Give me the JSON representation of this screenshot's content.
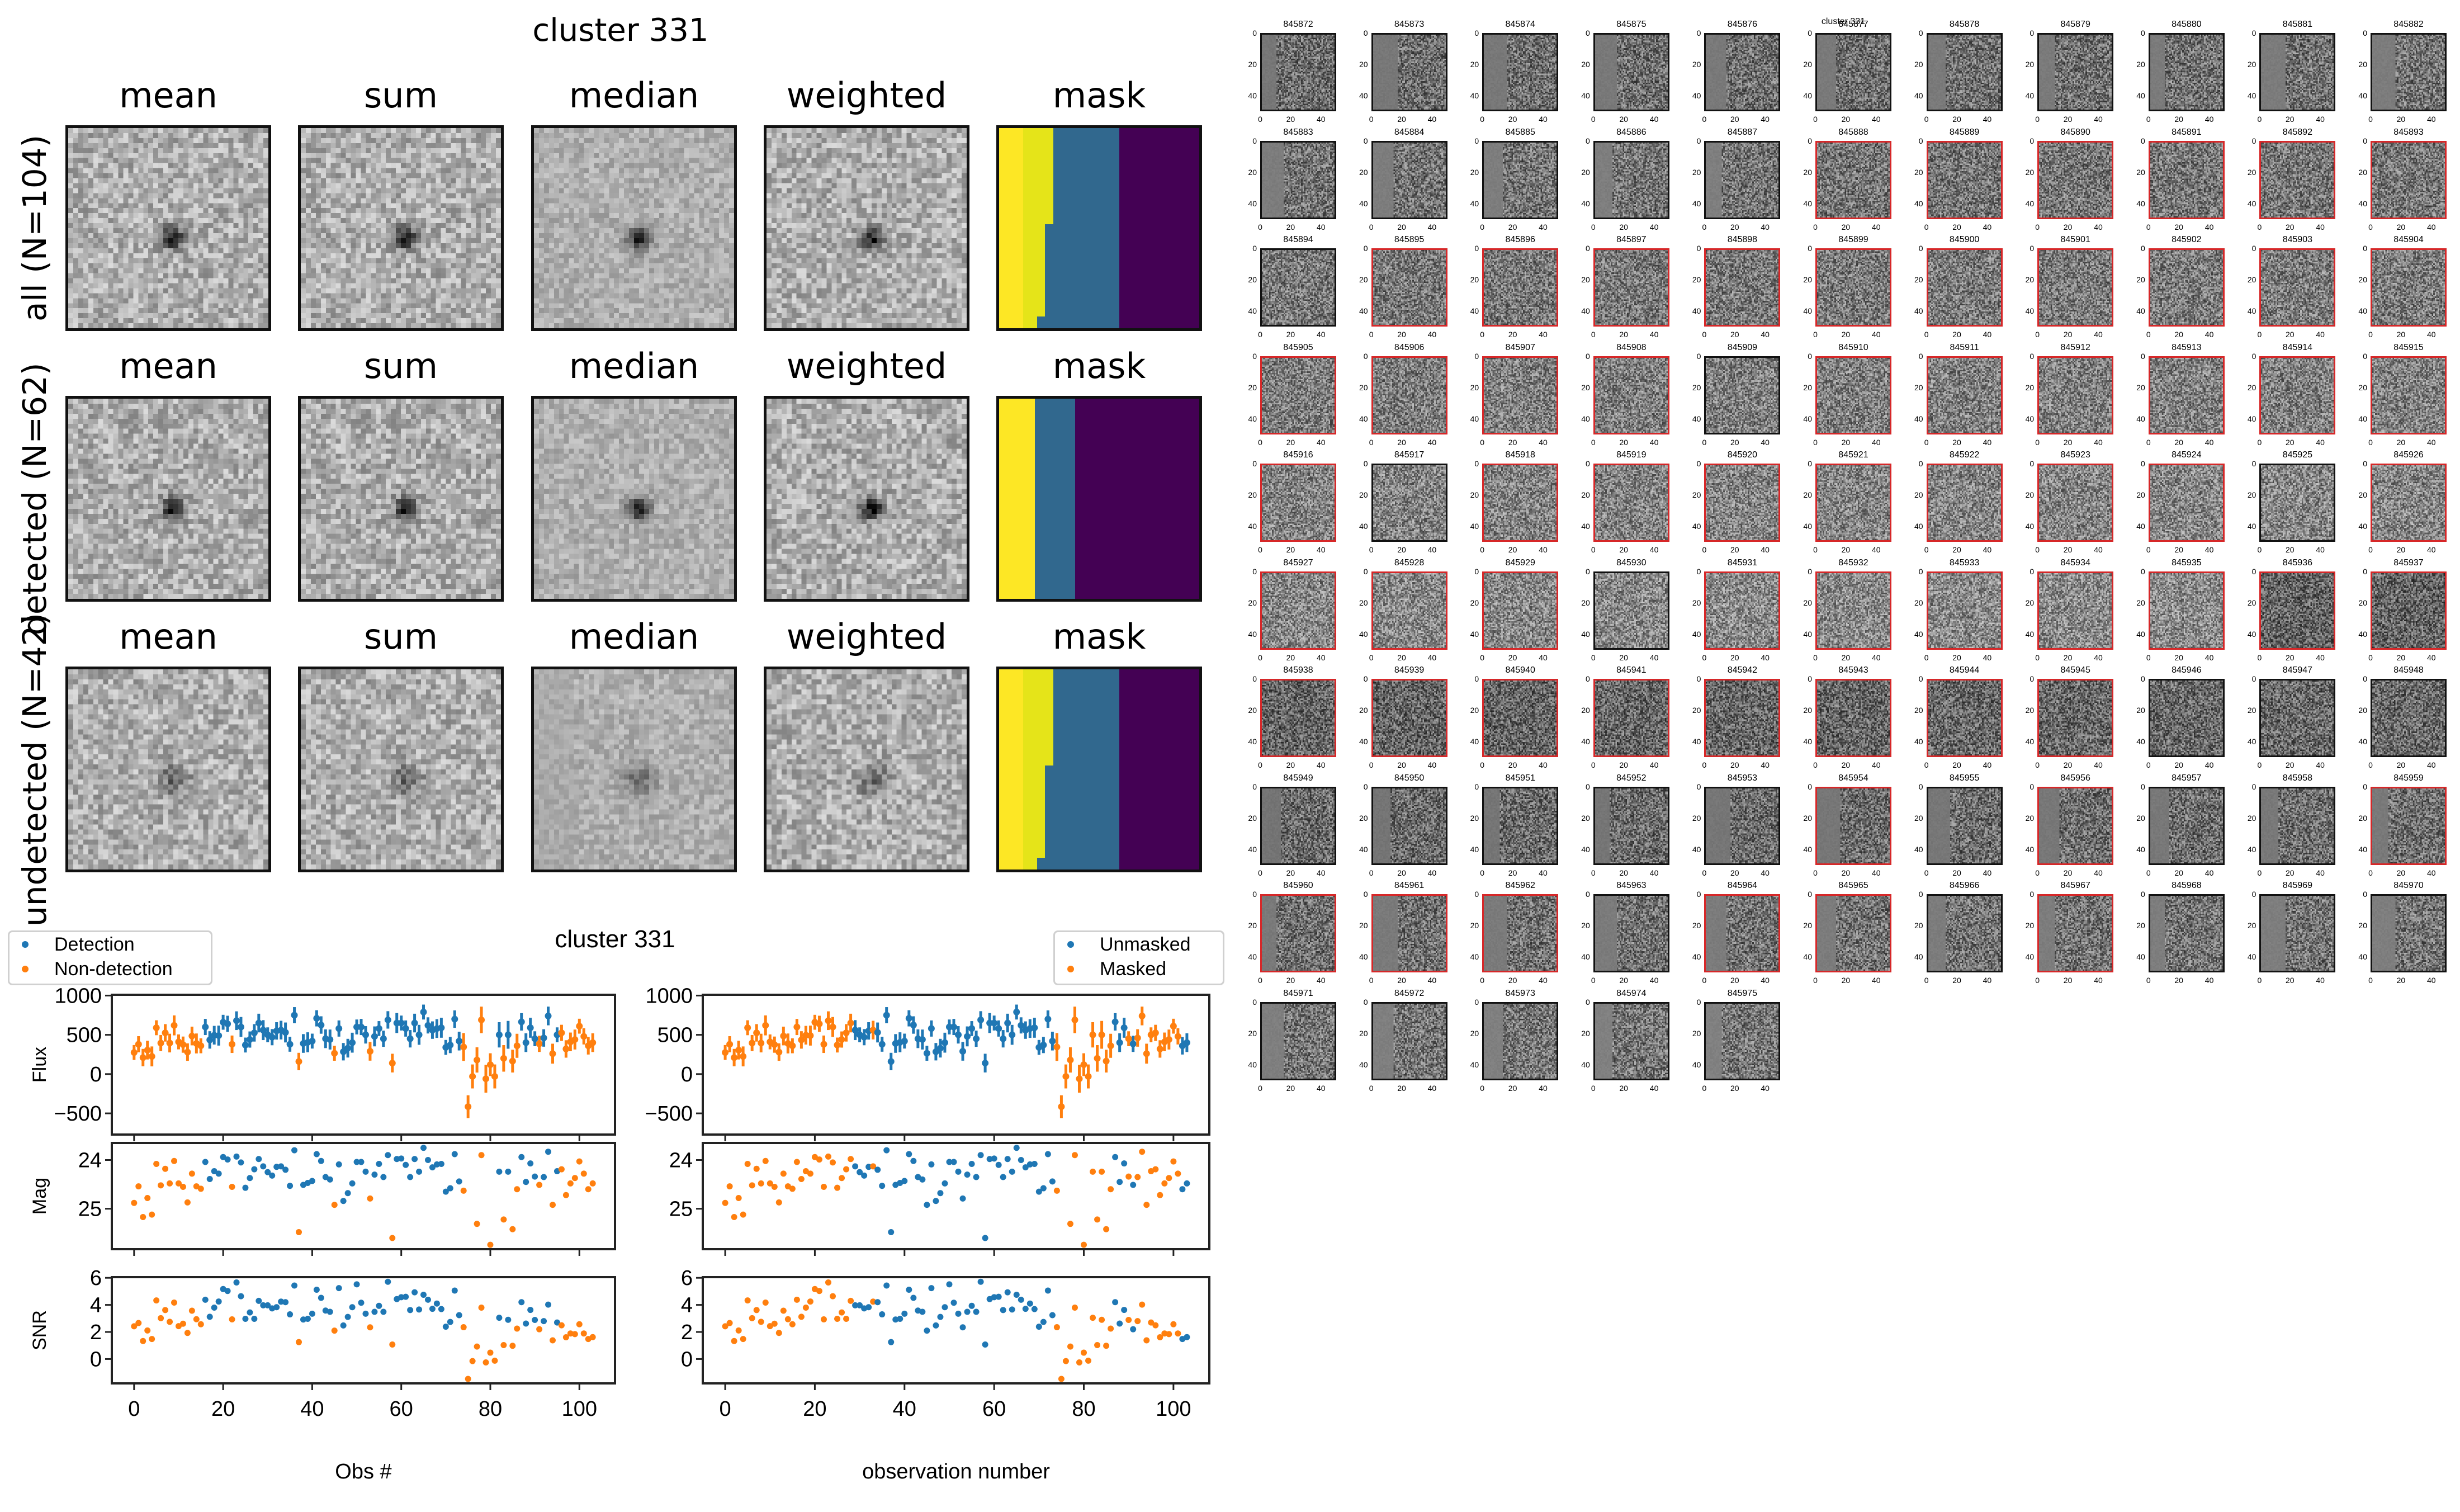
{
  "figure_left": {
    "title": "cluster 331",
    "column_titles": [
      "mean",
      "sum",
      "median",
      "weighted",
      "mask"
    ],
    "rows": [
      {
        "label": "all (N=104)",
        "n": 104
      },
      {
        "label": "detected (N=62)",
        "n": 62
      },
      {
        "label": "undetected (N=42)",
        "n": 42
      }
    ],
    "mask_colors": {
      "yellow": "#fde725",
      "yellow2": "#e5e419",
      "teal": "#31688e",
      "purple": "#440154"
    }
  },
  "colors": {
    "detection": "#1f77b4",
    "nondetection": "#ff7f0e",
    "thumb_detected_border": "#d62728"
  },
  "chart_data": [
    {
      "type": "scatter",
      "title": "cluster 331",
      "panels": [
        "Flux",
        "Mag",
        "SNR"
      ],
      "xlabel": "Obs #",
      "legend": {
        "position": "top-left",
        "entries": [
          "Detection",
          "Non-detection"
        ]
      },
      "xlim": [
        -5,
        108
      ],
      "xticks": [
        "0",
        "20",
        "40",
        "60",
        "80",
        "100"
      ],
      "flux_ylim": [
        -770,
        1010
      ],
      "flux_yticks": [
        "1000",
        "500",
        "0",
        "−500"
      ],
      "mag_ylim": [
        25.83,
        23.65
      ],
      "mag_yticks": [
        "24",
        "25"
      ],
      "snr_ylim": [
        -1.8,
        6.05
      ],
      "snr_yticks": [
        "6",
        "4",
        "2",
        "0"
      ],
      "group_by": "detected"
    },
    {
      "type": "scatter",
      "title": "",
      "panels": [
        "Flux",
        "Mag",
        "SNR"
      ],
      "xlabel": "observation number",
      "legend": {
        "position": "top-right",
        "entries": [
          "Unmasked",
          "Masked"
        ]
      },
      "xlim": [
        -5,
        108
      ],
      "xticks": [
        "0",
        "20",
        "40",
        "60",
        "80",
        "100"
      ],
      "flux_ylim": [
        -770,
        1010
      ],
      "flux_yticks": [
        "1000",
        "500",
        "0",
        "−500"
      ],
      "mag_ylim": [
        25.83,
        23.65
      ],
      "mag_yticks": [
        "24",
        "25"
      ],
      "snr_ylim": [
        -1.8,
        6.05
      ],
      "snr_yticks": [
        "6",
        "4",
        "2",
        "0"
      ],
      "group_by": "unmasked"
    }
  ],
  "observations": {
    "obs": [
      0,
      1,
      2,
      3,
      4,
      5,
      6,
      7,
      8,
      9,
      10,
      11,
      12,
      13,
      14,
      15,
      16,
      17,
      18,
      19,
      20,
      21,
      22,
      23,
      24,
      25,
      26,
      27,
      28,
      29,
      30,
      31,
      32,
      33,
      34,
      35,
      36,
      37,
      38,
      39,
      40,
      41,
      42,
      43,
      44,
      45,
      46,
      47,
      48,
      49,
      50,
      51,
      52,
      53,
      54,
      55,
      56,
      57,
      58,
      59,
      60,
      61,
      62,
      63,
      64,
      65,
      66,
      67,
      68,
      69,
      70,
      71,
      72,
      73,
      74,
      75,
      76,
      77,
      78,
      79,
      80,
      81,
      82,
      83,
      84,
      85,
      86,
      87,
      88,
      89,
      90,
      91,
      92,
      93,
      94,
      95,
      96,
      97,
      98,
      99,
      100,
      101,
      102,
      103
    ],
    "flux": [
      275,
      380,
      210,
      305,
      225,
      590,
      395,
      525,
      395,
      620,
      410,
      375,
      280,
      485,
      390,
      360,
      600,
      435,
      495,
      490,
      660,
      640,
      380,
      680,
      600,
      370,
      440,
      525,
      650,
      560,
      500,
      470,
      550,
      560,
      530,
      380,
      750,
      160,
      390,
      405,
      420,
      710,
      625,
      450,
      440,
      265,
      580,
      285,
      330,
      400,
      600,
      600,
      500,
      290,
      480,
      580,
      450,
      690,
      140,
      650,
      650,
      580,
      450,
      650,
      500,
      790,
      620,
      560,
      580,
      590,
      340,
      370,
      700,
      420,
      345,
      -415,
      -30,
      180,
      690,
      -60,
      120,
      -30,
      500,
      200,
      500,
      165,
      360,
      665,
      400,
      590,
      450,
      385,
      460,
      740,
      260,
      500,
      525,
      320,
      410,
      440,
      610,
      480,
      360,
      400
    ],
    "mag": [
      24.88,
      24.54,
      25.17,
      24.78,
      25.12,
      24.08,
      24.52,
      24.18,
      24.48,
      24.02,
      24.48,
      24.55,
      24.87,
      24.28,
      24.54,
      24.59,
      24.04,
      24.39,
      24.23,
      24.28,
      23.94,
      23.99,
      24.55,
      23.93,
      24.05,
      24.57,
      24.37,
      24.19,
      23.98,
      24.13,
      24.25,
      24.32,
      24.14,
      24.13,
      24.2,
      24.53,
      23.8,
      25.48,
      24.51,
      24.47,
      24.43,
      23.88,
      24.02,
      24.35,
      24.4,
      24.92,
      24.09,
      24.84,
      24.68,
      24.48,
      24.04,
      24.04,
      24.24,
      24.79,
      24.3,
      24.08,
      24.35,
      23.9,
      25.6,
      23.98,
      23.97,
      24.1,
      24.35,
      23.98,
      24.24,
      23.75,
      24.0,
      24.15,
      24.09,
      24.08,
      24.65,
      24.58,
      23.88,
      24.44,
      24.63,
      null,
      null,
      25.31,
      23.9,
      null,
      25.74,
      null,
      24.24,
      25.22,
      24.24,
      25.42,
      24.6,
      23.94,
      24.45,
      24.07,
      24.34,
      24.51,
      24.35,
      23.83,
      24.92,
      24.23,
      24.19,
      24.72,
      24.48,
      24.37,
      24.03,
      24.28,
      24.6,
      24.48
    ],
    "snr": [
      2.42,
      2.66,
      1.33,
      2.11,
      1.48,
      4.33,
      3.02,
      3.62,
      2.75,
      4.17,
      2.43,
      2.61,
      1.93,
      3.57,
      2.94,
      2.57,
      4.38,
      3.12,
      3.8,
      4.25,
      5.17,
      5.03,
      2.93,
      5.66,
      4.64,
      2.97,
      3.44,
      2.97,
      4.3,
      3.97,
      3.97,
      3.74,
      3.83,
      4.24,
      4.2,
      3.3,
      5.43,
      1.25,
      2.92,
      2.97,
      3.35,
      5.12,
      4.52,
      3.58,
      3.49,
      2.1,
      5.24,
      2.48,
      3.11,
      3.83,
      5.52,
      4.16,
      3.35,
      2.34,
      3.49,
      3.93,
      3.49,
      5.71,
      1.07,
      4.43,
      4.57,
      4.6,
      3.62,
      4.93,
      3.66,
      4.75,
      4.38,
      3.71,
      4.1,
      3.69,
      2.39,
      2.74,
      5.06,
      3.24,
      2.35,
      -1.47,
      -0.15,
      0.92,
      3.8,
      -0.25,
      0.47,
      -0.12,
      3.05,
      1.03,
      2.9,
      0.98,
      2.25,
      4.2,
      2.62,
      3.63,
      2.89,
      2.2,
      2.8,
      4.02,
      1.38,
      2.7,
      2.49,
      1.61,
      1.89,
      1.84,
      2.57,
      1.89,
      1.48,
      1.62
    ],
    "detected": [
      0,
      0,
      0,
      0,
      0,
      0,
      0,
      0,
      0,
      0,
      0,
      0,
      0,
      0,
      0,
      0,
      1,
      1,
      1,
      1,
      1,
      1,
      0,
      1,
      1,
      1,
      1,
      1,
      1,
      1,
      1,
      1,
      1,
      1,
      1,
      1,
      1,
      0,
      1,
      1,
      1,
      1,
      1,
      1,
      1,
      0,
      1,
      1,
      1,
      1,
      1,
      1,
      1,
      0,
      1,
      1,
      1,
      1,
      0,
      1,
      1,
      1,
      1,
      1,
      1,
      1,
      1,
      1,
      1,
      1,
      1,
      1,
      1,
      1,
      0,
      0,
      0,
      0,
      0,
      0,
      0,
      0,
      1,
      0,
      1,
      0,
      0,
      1,
      1,
      1,
      1,
      0,
      1,
      1,
      0,
      1,
      0,
      0,
      0,
      0,
      0,
      0,
      0,
      0
    ],
    "unmasked": [
      0,
      0,
      0,
      0,
      0,
      0,
      0,
      0,
      0,
      0,
      0,
      0,
      0,
      0,
      0,
      0,
      0,
      0,
      0,
      0,
      0,
      0,
      0,
      0,
      0,
      0,
      0,
      0,
      0,
      1,
      1,
      1,
      1,
      0,
      1,
      1,
      1,
      1,
      1,
      1,
      1,
      1,
      1,
      1,
      1,
      1,
      1,
      1,
      1,
      1,
      1,
      1,
      1,
      1,
      1,
      1,
      1,
      1,
      1,
      1,
      1,
      1,
      1,
      1,
      1,
      1,
      1,
      1,
      1,
      1,
      1,
      1,
      1,
      1,
      0,
      0,
      0,
      0,
      0,
      0,
      0,
      0,
      0,
      0,
      0,
      0,
      0,
      1,
      1,
      1,
      0,
      1,
      0,
      0,
      0,
      0,
      0,
      0,
      0,
      0,
      0,
      0,
      1,
      1
    ]
  },
  "thumbnails": {
    "overlay_title": "cluster 331",
    "first_id": 845872,
    "count": 104,
    "ticks": [
      "0",
      "20",
      "40"
    ]
  }
}
